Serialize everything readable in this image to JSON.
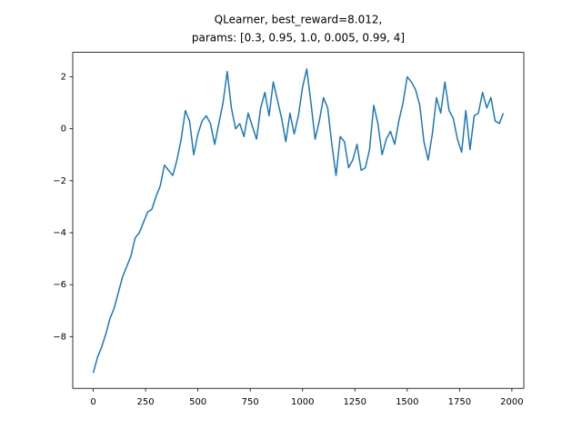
{
  "chart_data": {
    "type": "line",
    "title": [
      "QLearner, best_reward=8.012,",
      "params: [0.3, 0.95, 1.0, 0.005, 0.99, 4]"
    ],
    "x": [
      0,
      20,
      40,
      60,
      80,
      100,
      120,
      140,
      160,
      180,
      200,
      220,
      240,
      260,
      280,
      300,
      320,
      340,
      360,
      380,
      400,
      420,
      440,
      460,
      480,
      500,
      520,
      540,
      560,
      580,
      600,
      620,
      640,
      660,
      680,
      700,
      720,
      740,
      760,
      780,
      800,
      820,
      840,
      860,
      880,
      900,
      920,
      940,
      960,
      980,
      1000,
      1020,
      1040,
      1060,
      1080,
      1100,
      1120,
      1140,
      1160,
      1180,
      1200,
      1220,
      1240,
      1260,
      1280,
      1300,
      1320,
      1340,
      1360,
      1380,
      1400,
      1420,
      1440,
      1460,
      1480,
      1500,
      1520,
      1540,
      1560,
      1580,
      1600,
      1620,
      1640,
      1660,
      1680,
      1700,
      1720,
      1740,
      1760,
      1780,
      1800,
      1820,
      1840,
      1860,
      1880,
      1900,
      1920,
      1940,
      1959
    ],
    "series": [
      {
        "color": "#1f77b4",
        "values": [
          -9.4,
          -8.8,
          -8.4,
          -7.9,
          -7.3,
          -6.9,
          -6.3,
          -5.7,
          -5.3,
          -4.9,
          -4.2,
          -4.0,
          -3.6,
          -3.2,
          -3.1,
          -2.6,
          -2.2,
          -1.4,
          -1.6,
          -1.8,
          -1.2,
          -0.4,
          0.7,
          0.3,
          -1.0,
          -0.2,
          0.3,
          0.5,
          0.2,
          -0.6,
          0.2,
          1.0,
          2.2,
          0.8,
          0.0,
          0.2,
          -0.3,
          0.6,
          0.1,
          -0.4,
          0.8,
          1.4,
          0.5,
          1.8,
          1.1,
          0.4,
          -0.5,
          0.6,
          -0.2,
          0.5,
          1.6,
          2.3,
          1.0,
          -0.4,
          0.3,
          1.2,
          0.8,
          -0.6,
          -1.8,
          -0.3,
          -0.5,
          -1.5,
          -1.2,
          -0.6,
          -1.6,
          -1.5,
          -0.8,
          0.9,
          0.2,
          -1.0,
          -0.4,
          -0.1,
          -0.6,
          0.3,
          1.0,
          2.0,
          1.8,
          1.5,
          0.9,
          -0.5,
          -1.2,
          -0.2,
          1.2,
          0.6,
          1.8,
          0.7,
          0.4,
          -0.4,
          -0.9,
          0.7,
          -0.8,
          0.5,
          0.6,
          1.4,
          0.8,
          1.2,
          0.3,
          0.2,
          0.6
        ]
      }
    ],
    "xlim": [
      -98,
      2057
    ],
    "ylim": [
      -9.99,
      2.94
    ],
    "xticks": [
      0,
      250,
      500,
      750,
      1000,
      1250,
      1500,
      1750,
      2000
    ],
    "yticks": [
      {
        "value": -8,
        "label": "−8"
      },
      {
        "value": -6,
        "label": "−6"
      },
      {
        "value": -4,
        "label": "−4"
      },
      {
        "value": -2,
        "label": "−2"
      },
      0,
      2
    ]
  }
}
